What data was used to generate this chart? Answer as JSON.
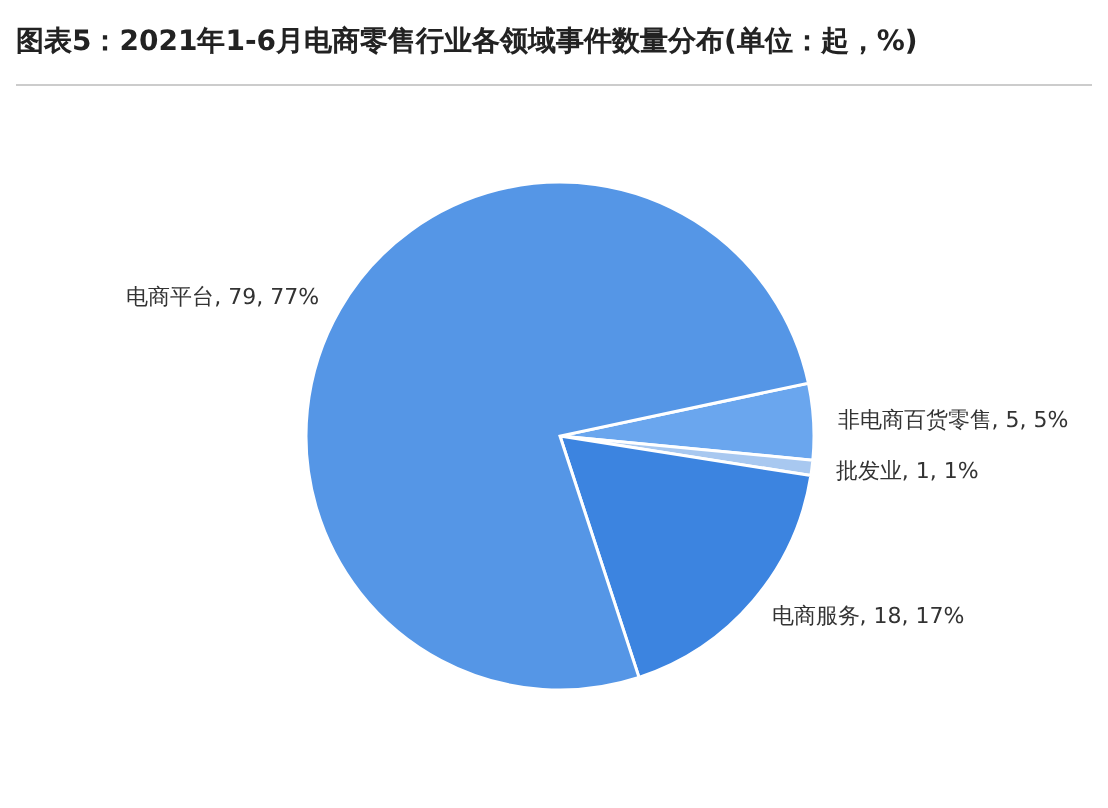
{
  "chart_data": {
    "type": "pie",
    "title": "图表5：2021年1-6月电商零售行业各领域事件数量分布(单位：起，%)",
    "categories": [
      "非电商百货零售",
      "批发业",
      "电商服务",
      "电商平台"
    ],
    "values": [
      5,
      1,
      18,
      79
    ],
    "value_labels": [
      "5, 5%",
      "1, 1%",
      "18, 17%",
      "79, 77%"
    ],
    "colors": [
      "#6aa6ee",
      "#a8c8f0",
      "#3c84e0",
      "#5596e6"
    ]
  }
}
